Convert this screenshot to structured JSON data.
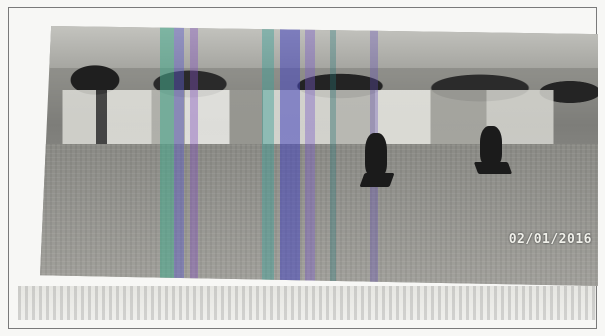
{
  "photo": {
    "date_stamp": "02/01/2016",
    "description_icon": "field-photo-icon"
  },
  "colors": {
    "background": "#f7f7f5",
    "stripe_teal": "#46aa8c",
    "stripe_blue": "#5a5ac8",
    "stamp": "#f0f0ea"
  }
}
